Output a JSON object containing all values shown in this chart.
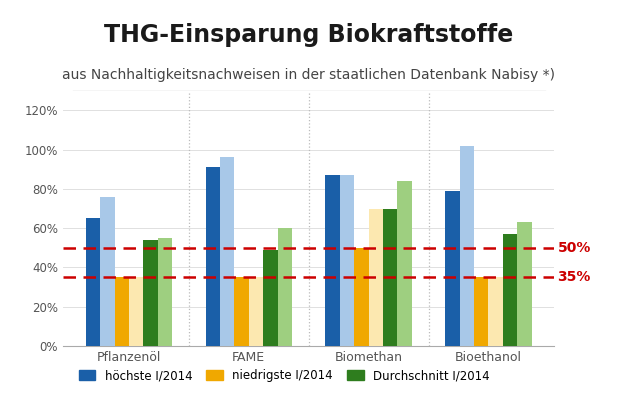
{
  "title": "THG-Einsparung Biokraftstoffe",
  "subtitle": "aus Nachhaltigkeitsnachweisen in der staatlichen Datenbank Nabisy *)",
  "categories": [
    "Pflanzenöl",
    "FAME",
    "Biomethan",
    "Bioethanol"
  ],
  "series_order": [
    "hoechste_dark",
    "hoechste_light",
    "niedrigste_dark",
    "niedrigste_light",
    "durchschnitt_dark",
    "durchschnitt_light"
  ],
  "series": {
    "hoechste_dark": [
      65,
      91,
      87,
      79
    ],
    "hoechste_light": [
      76,
      96,
      87,
      102
    ],
    "niedrigste_dark": [
      35,
      35,
      50,
      35
    ],
    "niedrigste_light": [
      35,
      35,
      70,
      35
    ],
    "durchschnitt_dark": [
      54,
      49,
      70,
      57
    ],
    "durchschnitt_light": [
      55,
      60,
      84,
      63
    ]
  },
  "bar_colors": {
    "hoechste_dark": "#1a5fa8",
    "hoechste_light": "#a8c8e8",
    "niedrigste_dark": "#f0a800",
    "niedrigste_light": "#fce8b0",
    "durchschnitt_dark": "#2e7d1e",
    "durchschnitt_light": "#9ecf80"
  },
  "ref_lines": [
    {
      "value": 50,
      "label": "50%",
      "color": "#cc0000"
    },
    {
      "value": 35,
      "label": "35%",
      "color": "#cc0000"
    }
  ],
  "legend": [
    {
      "label": "höchste I/2014",
      "color": "#1a5fa8"
    },
    {
      "label": "niedrigste I/2014",
      "color": "#f0a800"
    },
    {
      "label": "Durchschnitt I/2014",
      "color": "#2e7d1e"
    }
  ],
  "ylim": [
    0,
    130
  ],
  "yticks": [
    0,
    20,
    40,
    60,
    80,
    100,
    120
  ],
  "ytick_labels": [
    "0%",
    "20%",
    "40%",
    "60%",
    "80%",
    "100%",
    "120%"
  ],
  "background_color": "#ffffff",
  "plot_bg_color": "#ffffff",
  "title_fontsize": 17,
  "subtitle_fontsize": 10,
  "bar_width": 0.12,
  "title_color": "#1a1a1a",
  "subtitle_color": "#444444",
  "tick_color": "#555555",
  "separator_line_color": "#aaaaaa",
  "ref_label_fontsize": 10
}
